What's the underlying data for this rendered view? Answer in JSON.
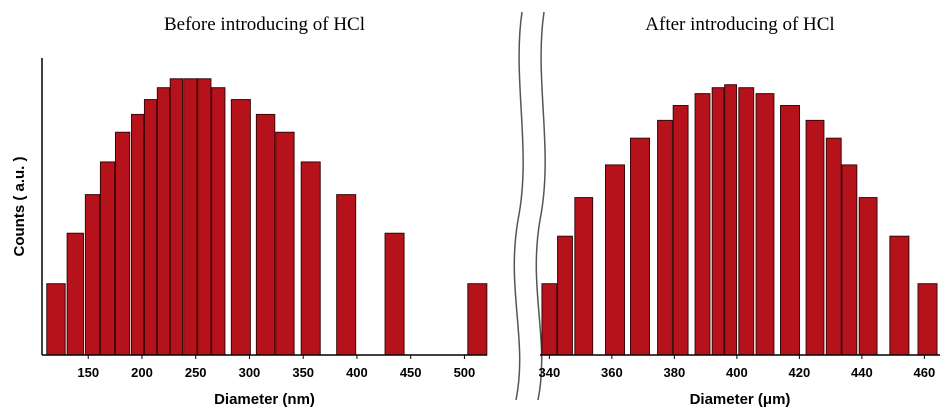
{
  "chart_data": [
    {
      "type": "bar",
      "title": "Before introducing of HCl",
      "x_label": "Diameter (nm)",
      "y_label": "Counts ( a.u. )",
      "x": [
        120,
        138,
        154,
        168,
        182,
        196,
        208,
        220,
        232,
        245,
        258,
        271,
        292,
        315,
        333,
        357,
        390,
        435,
        512
      ],
      "values": [
        24,
        41,
        54,
        65,
        75,
        81,
        86,
        90,
        93,
        93,
        93,
        90,
        86,
        81,
        75,
        65,
        54,
        41,
        24
      ],
      "color": "#b5121b",
      "xlim": [
        107,
        521
      ],
      "ylim": [
        0,
        100
      ],
      "xticks": [
        150,
        200,
        250,
        300,
        350,
        400,
        450,
        500
      ]
    },
    {
      "type": "bar",
      "title": "After  introducing of HCl",
      "x_label": "Diameter (μm)",
      "x": [
        340,
        345,
        351,
        361,
        369,
        377,
        382,
        389,
        394,
        398,
        403,
        409,
        417,
        425,
        431,
        436,
        442,
        452,
        461
      ],
      "values": [
        24,
        40,
        53,
        64,
        73,
        79,
        84,
        88,
        90,
        91,
        90,
        88,
        84,
        79,
        73,
        64,
        53,
        40,
        24
      ],
      "color": "#b5121b",
      "xlim": [
        337,
        465
      ],
      "ylim": [
        0,
        100
      ],
      "xticks": [
        340,
        360,
        380,
        400,
        420,
        440,
        460
      ]
    }
  ]
}
